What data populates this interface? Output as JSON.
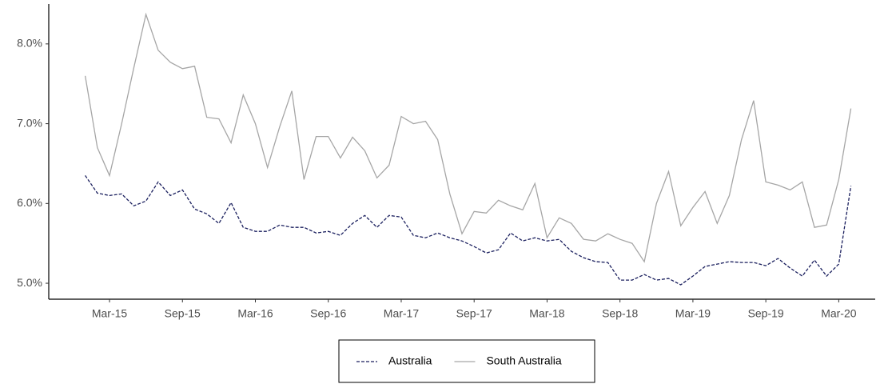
{
  "chart_data": {
    "type": "line",
    "x": [
      "2015-01",
      "2015-02",
      "2015-03",
      "2015-04",
      "2015-05",
      "2015-06",
      "2015-07",
      "2015-08",
      "2015-09",
      "2015-10",
      "2015-11",
      "2015-12",
      "2016-01",
      "2016-02",
      "2016-03",
      "2016-04",
      "2016-05",
      "2016-06",
      "2016-07",
      "2016-08",
      "2016-09",
      "2016-10",
      "2016-11",
      "2016-12",
      "2017-01",
      "2017-02",
      "2017-03",
      "2017-04",
      "2017-05",
      "2017-06",
      "2017-07",
      "2017-08",
      "2017-09",
      "2017-10",
      "2017-11",
      "2017-12",
      "2018-01",
      "2018-02",
      "2018-03",
      "2018-04",
      "2018-05",
      "2018-06",
      "2018-07",
      "2018-08",
      "2018-09",
      "2018-10",
      "2018-11",
      "2018-12",
      "2019-01",
      "2019-02",
      "2019-03",
      "2019-04",
      "2019-05",
      "2019-06",
      "2019-07",
      "2019-08",
      "2019-09",
      "2019-10",
      "2019-11",
      "2019-12",
      "2020-01",
      "2020-02",
      "2020-03",
      "2020-04"
    ],
    "series": [
      {
        "name": "Australia",
        "color": "#1a1f5e",
        "dash": true,
        "values": [
          6.35,
          6.13,
          6.1,
          6.12,
          5.97,
          6.03,
          6.27,
          6.1,
          6.17,
          5.93,
          5.87,
          5.75,
          6.01,
          5.7,
          5.65,
          5.65,
          5.73,
          5.7,
          5.7,
          5.63,
          5.65,
          5.6,
          5.75,
          5.85,
          5.7,
          5.85,
          5.83,
          5.6,
          5.57,
          5.63,
          5.57,
          5.53,
          5.46,
          5.38,
          5.42,
          5.63,
          5.53,
          5.57,
          5.53,
          5.55,
          5.4,
          5.32,
          5.27,
          5.26,
          5.04,
          5.04,
          5.11,
          5.04,
          5.06,
          4.98,
          5.09,
          5.21,
          5.24,
          5.27,
          5.26,
          5.26,
          5.22,
          5.31,
          5.19,
          5.09,
          5.29,
          5.09,
          5.24,
          6.22
        ]
      },
      {
        "name": "South Australia",
        "color": "#a6a6a6",
        "dash": false,
        "values": [
          7.6,
          6.7,
          6.35,
          7.0,
          7.7,
          8.37,
          7.92,
          7.77,
          7.69,
          7.72,
          7.08,
          7.06,
          6.76,
          7.36,
          7.0,
          6.45,
          6.96,
          7.41,
          6.3,
          6.84,
          6.84,
          6.57,
          6.83,
          6.66,
          6.32,
          6.48,
          7.09,
          7.0,
          7.03,
          6.8,
          6.12,
          5.62,
          5.9,
          5.88,
          6.04,
          5.97,
          5.92,
          6.25,
          5.57,
          5.82,
          5.75,
          5.55,
          5.53,
          5.62,
          5.55,
          5.5,
          5.27,
          6.0,
          6.4,
          5.72,
          5.95,
          6.15,
          5.75,
          6.1,
          6.8,
          7.29,
          6.27,
          6.23,
          6.17,
          6.27,
          5.7,
          5.73,
          6.3,
          7.19
        ]
      }
    ],
    "xlim": [
      "2014-10",
      "2020-06"
    ],
    "xticks": [
      {
        "value": "2015-03",
        "label": "Mar-15"
      },
      {
        "value": "2015-09",
        "label": "Sep-15"
      },
      {
        "value": "2016-03",
        "label": "Mar-16"
      },
      {
        "value": "2016-09",
        "label": "Sep-16"
      },
      {
        "value": "2017-03",
        "label": "Mar-17"
      },
      {
        "value": "2017-09",
        "label": "Sep-17"
      },
      {
        "value": "2018-03",
        "label": "Mar-18"
      },
      {
        "value": "2018-09",
        "label": "Sep-18"
      },
      {
        "value": "2019-03",
        "label": "Mar-19"
      },
      {
        "value": "2019-09",
        "label": "Sep-19"
      },
      {
        "value": "2020-03",
        "label": "Mar-20"
      }
    ],
    "ylim": [
      4.8,
      8.5
    ],
    "yticks": [
      {
        "value": 5,
        "label": "5.0%"
      },
      {
        "value": 6,
        "label": "6.0%"
      },
      {
        "value": 7,
        "label": "7.0%"
      },
      {
        "value": 8,
        "label": "8.0%"
      }
    ],
    "grid": false,
    "legend": "bottom"
  }
}
